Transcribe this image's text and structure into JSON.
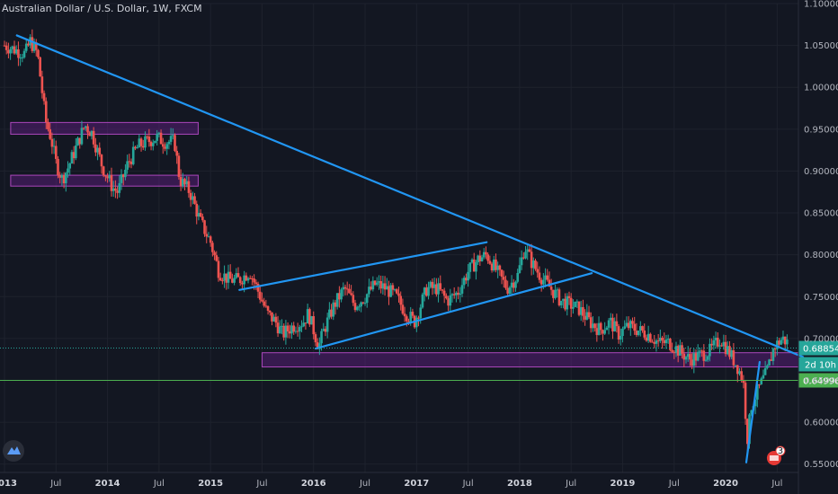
{
  "chart_data": {
    "type": "candlestick",
    "title": "Australian Dollar / U.S. Dollar, 1W, FXCM",
    "ylim": [
      0.54,
      1.1
    ],
    "y_ticks": [
      "1.10000",
      "1.05000",
      "1.00000",
      "0.95000",
      "0.90000",
      "0.85000",
      "0.80000",
      "0.75000",
      "0.70000",
      "0.65000",
      "0.60000",
      "0.55000"
    ],
    "x_range": [
      2013.0,
      2020.75
    ],
    "x_ticks": [
      {
        "label": "2013",
        "t": 2013.0,
        "year": true
      },
      {
        "label": "Jul",
        "t": 2013.5
      },
      {
        "label": "2014",
        "t": 2014.0,
        "year": true
      },
      {
        "label": "Jul",
        "t": 2014.5
      },
      {
        "label": "2015",
        "t": 2015.0,
        "year": true
      },
      {
        "label": "Jul",
        "t": 2015.5
      },
      {
        "label": "2016",
        "t": 2016.0,
        "year": true
      },
      {
        "label": "Jul",
        "t": 2016.5
      },
      {
        "label": "2017",
        "t": 2017.0,
        "year": true
      },
      {
        "label": "Jul",
        "t": 2017.5
      },
      {
        "label": "2018",
        "t": 2018.0,
        "year": true
      },
      {
        "label": "Jul",
        "t": 2018.5
      },
      {
        "label": "2019",
        "t": 2019.0,
        "year": true
      },
      {
        "label": "Jul",
        "t": 2019.5
      },
      {
        "label": "2020",
        "t": 2020.0,
        "year": true
      },
      {
        "label": "Jul",
        "t": 2020.5
      }
    ],
    "price_path": [
      [
        2013.0,
        1.05
      ],
      [
        2013.1,
        1.045
      ],
      [
        2013.2,
        1.04
      ],
      [
        2013.25,
        1.055
      ],
      [
        2013.32,
        1.04
      ],
      [
        2013.4,
        0.96
      ],
      [
        2013.45,
        0.94
      ],
      [
        2013.5,
        0.91
      ],
      [
        2013.56,
        0.89
      ],
      [
        2013.62,
        0.905
      ],
      [
        2013.7,
        0.93
      ],
      [
        2013.78,
        0.955
      ],
      [
        2013.85,
        0.945
      ],
      [
        2013.95,
        0.905
      ],
      [
        2014.05,
        0.88
      ],
      [
        2014.1,
        0.875
      ],
      [
        2014.2,
        0.91
      ],
      [
        2014.3,
        0.93
      ],
      [
        2014.38,
        0.935
      ],
      [
        2014.48,
        0.94
      ],
      [
        2014.55,
        0.935
      ],
      [
        2014.65,
        0.935
      ],
      [
        2014.7,
        0.89
      ],
      [
        2014.8,
        0.875
      ],
      [
        2014.9,
        0.84
      ],
      [
        2015.0,
        0.815
      ],
      [
        2015.08,
        0.78
      ],
      [
        2015.18,
        0.77
      ],
      [
        2015.28,
        0.77
      ],
      [
        2015.38,
        0.78
      ],
      [
        2015.45,
        0.76
      ],
      [
        2015.55,
        0.73
      ],
      [
        2015.63,
        0.72
      ],
      [
        2015.7,
        0.705
      ],
      [
        2015.8,
        0.715
      ],
      [
        2015.9,
        0.72
      ],
      [
        2015.95,
        0.73
      ],
      [
        2016.05,
        0.69
      ],
      [
        2016.1,
        0.71
      ],
      [
        2016.2,
        0.74
      ],
      [
        2016.3,
        0.76
      ],
      [
        2016.4,
        0.74
      ],
      [
        2016.5,
        0.75
      ],
      [
        2016.6,
        0.765
      ],
      [
        2016.7,
        0.76
      ],
      [
        2016.8,
        0.75
      ],
      [
        2016.9,
        0.73
      ],
      [
        2016.98,
        0.72
      ],
      [
        2017.1,
        0.76
      ],
      [
        2017.2,
        0.76
      ],
      [
        2017.3,
        0.745
      ],
      [
        2017.4,
        0.755
      ],
      [
        2017.5,
        0.78
      ],
      [
        2017.6,
        0.795
      ],
      [
        2017.68,
        0.8
      ],
      [
        2017.78,
        0.78
      ],
      [
        2017.88,
        0.76
      ],
      [
        2017.98,
        0.775
      ],
      [
        2018.05,
        0.81
      ],
      [
        2018.12,
        0.79
      ],
      [
        2018.2,
        0.775
      ],
      [
        2018.3,
        0.76
      ],
      [
        2018.4,
        0.745
      ],
      [
        2018.5,
        0.74
      ],
      [
        2018.58,
        0.735
      ],
      [
        2018.68,
        0.72
      ],
      [
        2018.78,
        0.71
      ],
      [
        2018.88,
        0.72
      ],
      [
        2018.96,
        0.705
      ],
      [
        2019.05,
        0.715
      ],
      [
        2019.15,
        0.71
      ],
      [
        2019.25,
        0.705
      ],
      [
        2019.35,
        0.695
      ],
      [
        2019.45,
        0.695
      ],
      [
        2019.55,
        0.685
      ],
      [
        2019.65,
        0.675
      ],
      [
        2019.75,
        0.68
      ],
      [
        2019.85,
        0.685
      ],
      [
        2019.95,
        0.7
      ],
      [
        2020.05,
        0.68
      ],
      [
        2020.12,
        0.665
      ],
      [
        2020.17,
        0.65
      ],
      [
        2020.21,
        0.58
      ],
      [
        2020.25,
        0.62
      ],
      [
        2020.32,
        0.64
      ],
      [
        2020.4,
        0.66
      ],
      [
        2020.47,
        0.69
      ],
      [
        2020.55,
        0.7
      ],
      [
        2020.6,
        0.695
      ]
    ],
    "trendlines": [
      {
        "name": "long-downtrend",
        "points": [
          [
            2013.12,
            1.062
          ],
          [
            2020.75,
            0.678
          ]
        ]
      },
      {
        "name": "channel-upper",
        "points": [
          [
            2015.28,
            0.758
          ],
          [
            2017.68,
            0.815
          ]
        ]
      },
      {
        "name": "channel-lower",
        "points": [
          [
            2016.02,
            0.688
          ],
          [
            2018.7,
            0.778
          ]
        ]
      },
      {
        "name": "recovery-line",
        "points": [
          [
            2020.2,
            0.552
          ],
          [
            2020.33,
            0.672
          ]
        ]
      }
    ],
    "zones": [
      {
        "name": "zone-top-1",
        "x": [
          2013.06,
          2014.88
        ],
        "y": [
          0.944,
          0.958
        ]
      },
      {
        "name": "zone-top-2",
        "x": [
          2013.06,
          2014.88
        ],
        "y": [
          0.882,
          0.895
        ]
      },
      {
        "name": "zone-support",
        "x": [
          2015.5,
          2020.9
        ],
        "y": [
          0.666,
          0.683
        ]
      }
    ],
    "price_lines": [
      {
        "value": 0.68854,
        "label": "0.68854",
        "color": "#26a69a",
        "style": "dotted"
      },
      {
        "value": 0.64996,
        "label": "0.64996",
        "color": "#4caf50",
        "style": "solid"
      }
    ],
    "countdown": "2d 10h",
    "notification_count": "3",
    "colors": {
      "background": "#131722",
      "up": "#26a69a",
      "down": "#ef5350",
      "trendline": "#2196f3",
      "zone_fill": "#7b1fa2",
      "zone_stroke": "#ab47bc",
      "text": "#b2b5be",
      "grid": "#1e222d"
    }
  }
}
